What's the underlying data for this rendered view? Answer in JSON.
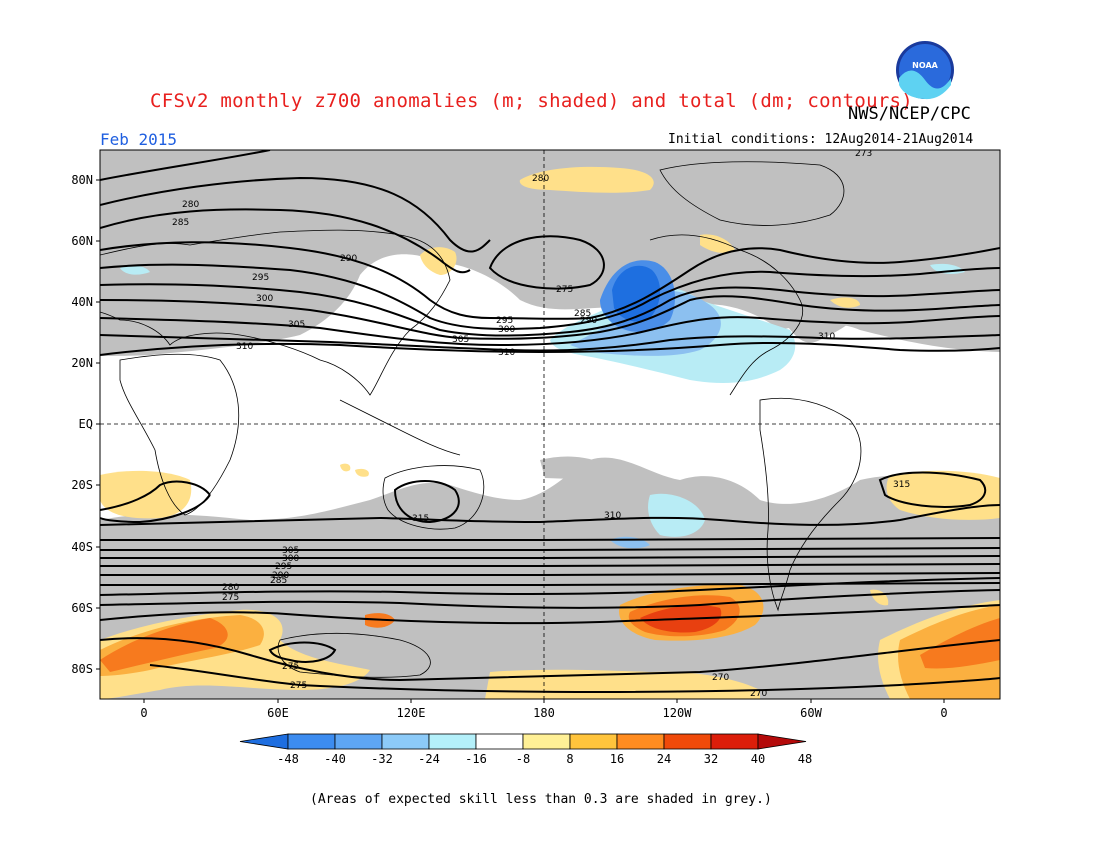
{
  "header": {
    "title": "CFSv2 monthly z700 anomalies (m; shaded) and total (dm; contours)",
    "agency": "NWS/NCEP/CPC",
    "month": "Feb 2015",
    "initial_conditions": "Initial conditions: 12Aug2014-21Aug2014"
  },
  "logo": {
    "name": "noaa-logo",
    "text": "NOAA"
  },
  "map": {
    "lat_labels": [
      "80N",
      "60N",
      "40N",
      "20N",
      "EQ",
      "20S",
      "40S",
      "60S",
      "80S"
    ],
    "lon_labels": [
      "0",
      "60E",
      "120E",
      "180",
      "120W",
      "60W",
      "0"
    ],
    "contour_labels": [
      "280",
      "285",
      "290",
      "295",
      "300",
      "305",
      "310",
      "275",
      "280",
      "285",
      "290",
      "295",
      "300",
      "305",
      "310",
      "310",
      "315",
      "315",
      "310",
      "305",
      "300",
      "295",
      "290",
      "285",
      "280",
      "275",
      "275",
      "275",
      "270",
      "270",
      "273"
    ],
    "colors": {
      "grey": "#c0c0c0",
      "blue_dark": "#1e6fe0",
      "blue_mid": "#4a8ee8",
      "blue_light": "#8cc0f0",
      "cyan_light": "#b8ecf5",
      "yellow": "#ffe08a",
      "orange_light": "#fbb040",
      "orange": "#f77a1e",
      "red_orange": "#e84010"
    }
  },
  "colorbar": {
    "labels": [
      "-48",
      "-40",
      "-32",
      "-24",
      "-16",
      "-8",
      "8",
      "16",
      "24",
      "32",
      "40",
      "48"
    ],
    "colors": [
      "#1e6ee0",
      "#3c8cf0",
      "#5ea6f4",
      "#8ccaf8",
      "#b4f0fa",
      "#ffffff",
      "#fff096",
      "#ffc43c",
      "#ff8c20",
      "#f04a0a",
      "#dc1e0a",
      "#b40a0a"
    ]
  },
  "footer": {
    "caption": "(Areas of expected skill less than 0.3 are shaded in grey.)"
  }
}
